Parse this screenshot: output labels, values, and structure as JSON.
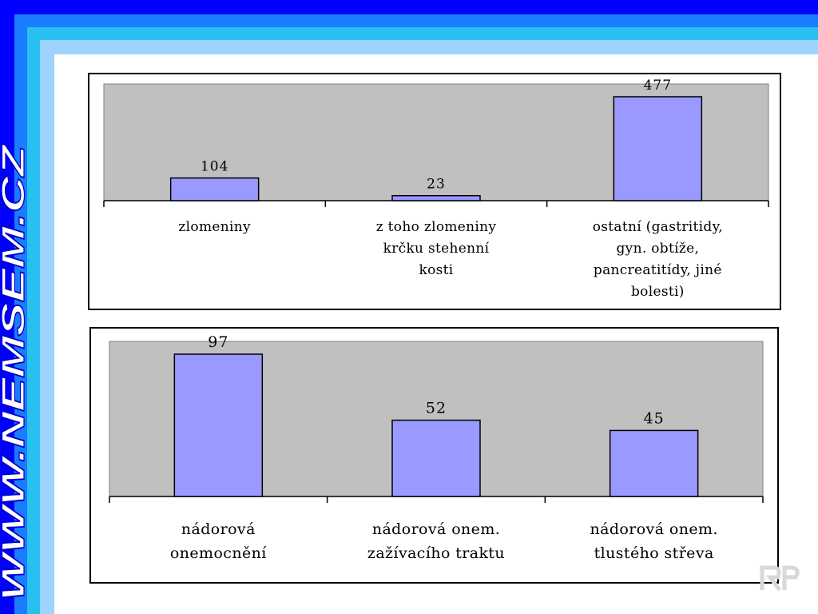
{
  "side_banner": {
    "text": "WWW.NEMSEM.CZ"
  },
  "colors": {
    "bar_fill": "#9999ff",
    "plot_bg": "#c0c0c0",
    "frame_blue": "#0000ff",
    "side_text": "#ffffff"
  },
  "chart_data": [
    {
      "type": "bar",
      "categories": [
        "zlomeniny",
        "z toho zlomeniny krčku stehenní kosti",
        "ostatní (gastritidy, gyn. obtíže, pancreatitídy, jiné bolesti)"
      ],
      "category_lines": [
        [
          "zlomeniny"
        ],
        [
          "z toho zlomeniny",
          "krčku stehenní",
          "kosti"
        ],
        [
          "ostatní (gastritidy,",
          "gyn. obtíže,",
          "pancreatitídy, jiné",
          "bolesti)"
        ]
      ],
      "values": [
        104,
        23,
        477
      ],
      "value_labels": [
        "104",
        "23",
        "477"
      ],
      "ylim": [
        0,
        477
      ],
      "grid": false,
      "legend": "none"
    },
    {
      "type": "bar",
      "categories": [
        "nádorová onemocnění",
        "nádorová onem. zažívacího traktu",
        "nádorová onem. tlustého střeva"
      ],
      "category_lines": [
        [
          "nádorová",
          "onemocnění"
        ],
        [
          "nádorová onem.",
          "zažívacího traktu"
        ],
        [
          "nádorová onem.",
          "tlustého střeva"
        ]
      ],
      "values": [
        97,
        52,
        45
      ],
      "value_labels": [
        "97",
        "52",
        "45"
      ],
      "ylim": [
        0,
        97
      ],
      "grid": false,
      "legend": "none"
    }
  ]
}
